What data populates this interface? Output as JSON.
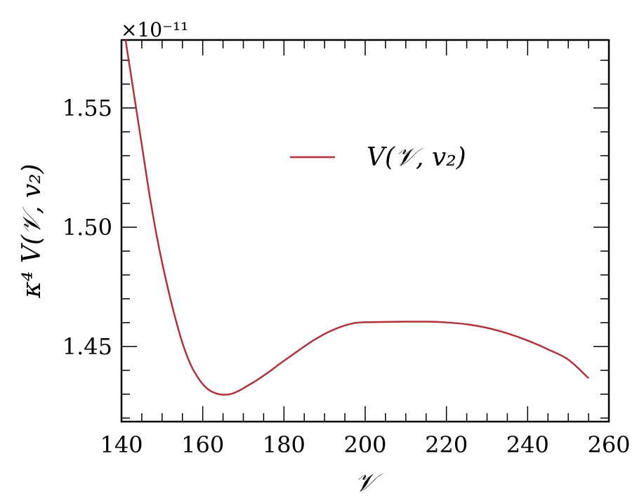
{
  "chart_data": {
    "type": "line",
    "title": "",
    "xlabel": "𝒱",
    "ylabel": "κ⁴ V(𝒱, v₂)",
    "y_offset_label": "×10⁻¹¹",
    "xlim": [
      140,
      260
    ],
    "ylim": [
      1.4185,
      1.5785
    ],
    "x_ticks": [
      140,
      160,
      180,
      200,
      220,
      240,
      260
    ],
    "x_tick_labels": [
      "140",
      "160",
      "180",
      "200",
      "220",
      "240",
      "260"
    ],
    "y_ticks": [
      1.45,
      1.5,
      1.55
    ],
    "y_tick_labels": [
      "1.45",
      "1.50",
      "1.55"
    ],
    "grid": false,
    "legend_position": "top-right",
    "series": [
      {
        "name": "V(𝒱, v₂)",
        "color": "#b0313b",
        "x": [
          141,
          143,
          145,
          147,
          149,
          151,
          153,
          155,
          157,
          159,
          161,
          163,
          165,
          167,
          169,
          171,
          173,
          175,
          177,
          179,
          181,
          183,
          185,
          187,
          189,
          191,
          193,
          195,
          197,
          199,
          201,
          205,
          210,
          215,
          220,
          225,
          230,
          235,
          240,
          245,
          250,
          255
        ],
        "y": [
          1.5785,
          1.5565,
          1.5345,
          1.5125,
          1.4935,
          1.4775,
          1.4635,
          1.4515,
          1.4425,
          1.4365,
          1.4325,
          1.4305,
          1.4298,
          1.4301,
          1.4315,
          1.4335,
          1.4355,
          1.4378,
          1.4402,
          1.4428,
          1.4452,
          1.4476,
          1.45,
          1.4523,
          1.4543,
          1.4561,
          1.4576,
          1.4588,
          1.4597,
          1.4601,
          1.4602,
          1.4603,
          1.4604,
          1.4604,
          1.4601,
          1.4593,
          1.4578,
          1.4555,
          1.4525,
          1.4488,
          1.4445,
          1.4367
        ]
      }
    ]
  }
}
